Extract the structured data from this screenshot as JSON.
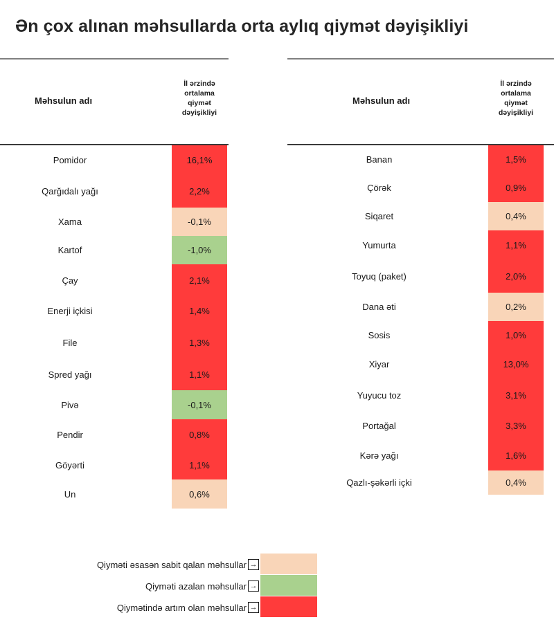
{
  "title": "Ən çox alınan məhsullarda orta aylıq qiymət dəyişikliyi",
  "colors": {
    "increase": "#ff3b3b",
    "stable": "#f9d5b8",
    "decrease": "#a9d18e"
  },
  "left_table": {
    "col_name": "Məhsulun adı",
    "col_value": [
      "İl ərzində",
      "ortalama",
      "qiymət",
      "dəyişikliyi"
    ],
    "rows": [
      {
        "name": "Pomidor",
        "value": "16,1%",
        "status": "increase"
      },
      {
        "name": "Qarğıdalı yağı",
        "value": "2,2%",
        "status": "increase"
      },
      {
        "name": "Xama",
        "value": "-0,1%",
        "status": "stable"
      },
      {
        "name": "Kartof",
        "value": "-1,0%",
        "status": "decrease"
      },
      {
        "name": "Çay",
        "value": "2,1%",
        "status": "increase"
      },
      {
        "name": "Enerji içkisi",
        "value": "1,4%",
        "status": "increase"
      },
      {
        "name": "File",
        "value": "1,3%",
        "status": "increase"
      },
      {
        "name": "Spred yağı",
        "value": "1,1%",
        "status": "increase"
      },
      {
        "name": "Pivə",
        "value": "-0,1%",
        "status": "decrease"
      },
      {
        "name": "Pendir",
        "value": "0,8%",
        "status": "increase"
      },
      {
        "name": "Göyərti",
        "value": "1,1%",
        "status": "increase"
      },
      {
        "name": "Un",
        "value": "0,6%",
        "status": "stable"
      }
    ]
  },
  "right_table": {
    "col_name": "Məhsulun adı",
    "col_value": [
      "İl ərzində",
      "ortalama",
      "qiymət",
      "dəyişikliyi"
    ],
    "rows": [
      {
        "name": "Banan",
        "value": "1,5%",
        "status": "increase"
      },
      {
        "name": "Çörək",
        "value": "0,9%",
        "status": "increase"
      },
      {
        "name": "Siqaret",
        "value": "0,4%",
        "status": "stable"
      },
      {
        "name": "Yumurta",
        "value": "1,1%",
        "status": "increase"
      },
      {
        "name": "Toyuq (paket)",
        "value": "2,0%",
        "status": "increase"
      },
      {
        "name": "Dana əti",
        "value": "0,2%",
        "status": "stable"
      },
      {
        "name": "Sosis",
        "value": "1,0%",
        "status": "increase"
      },
      {
        "name": "Xiyar",
        "value": "13,0%",
        "status": "increase"
      },
      {
        "name": "Yuyucu toz",
        "value": "3,1%",
        "status": "increase"
      },
      {
        "name": "Portağal",
        "value": "3,3%",
        "status": "increase"
      },
      {
        "name": "Kərə yağı",
        "value": "1,6%",
        "status": "increase"
      },
      {
        "name": "Qazlı-şəkərli içki",
        "value": "0,4%",
        "status": "stable"
      }
    ]
  },
  "legend": [
    {
      "label": "Qiyməti əsasən sabit qalan məhsullar",
      "arrow": "→",
      "status": "stable"
    },
    {
      "label": "Qiyməti azalan məhsullar",
      "arrow": "→",
      "status": "decrease"
    },
    {
      "label": "Qiymətində artım olan məhsullar",
      "arrow": "→",
      "status": "increase"
    }
  ]
}
